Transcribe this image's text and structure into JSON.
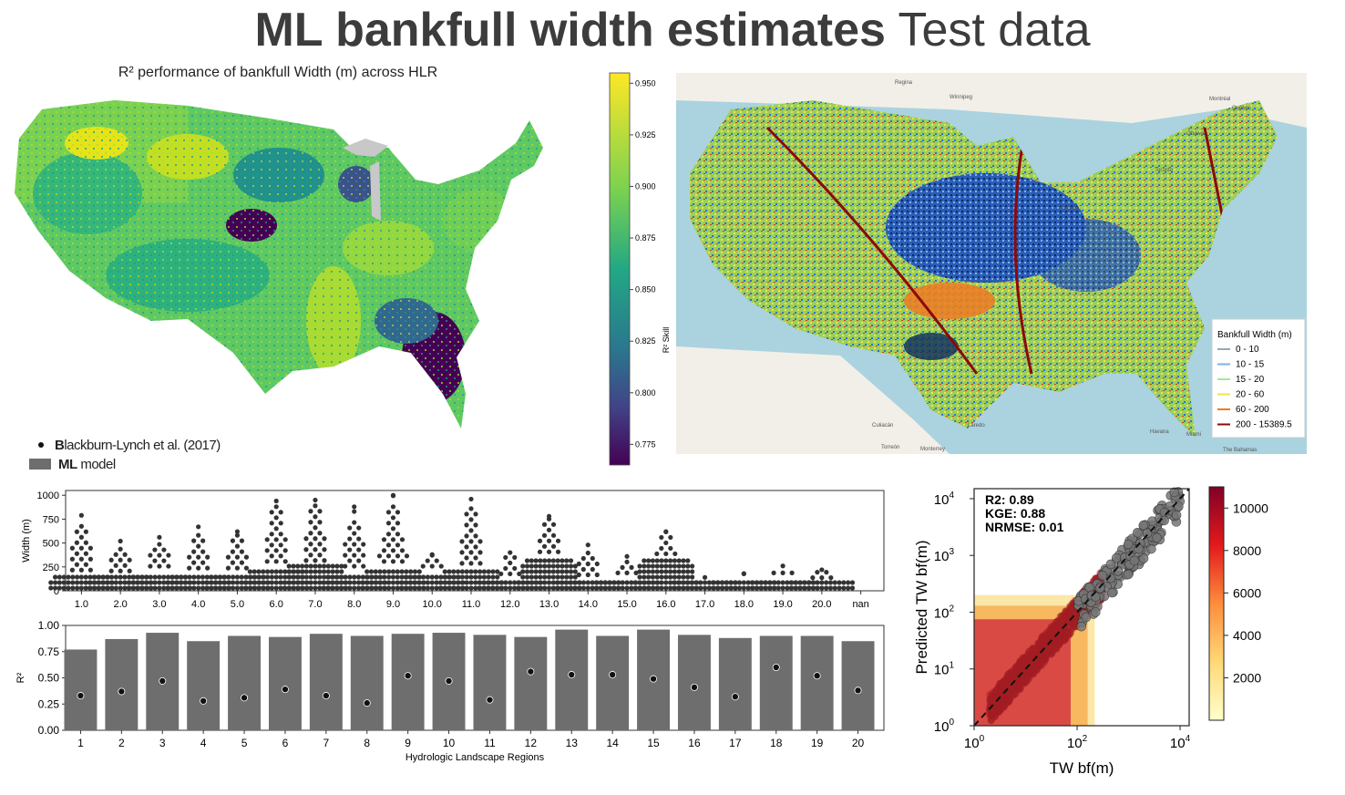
{
  "title": {
    "bold": "ML bankfull width estimates",
    "normal": "Test data"
  },
  "map_left": {
    "title": "R² performance of bankfull Width (m) across HLR",
    "colorbar": {
      "label": "R² Skill",
      "ticks": [
        "0.950",
        "0.925",
        "0.900",
        "0.875",
        "0.850",
        "0.825",
        "0.800",
        "0.775"
      ],
      "range": [
        0.765,
        0.955
      ],
      "colormap": "viridis"
    }
  },
  "map_right": {
    "place_labels": [
      "Regina",
      "Winnipeg",
      "Ottawa",
      "Toronto",
      "Montréal",
      "Québec",
      "Torreón",
      "Monterrey",
      "Culiacán",
      "Havana",
      "The Bahamas",
      "Miami",
      "Laredo",
      "Chicago"
    ],
    "legend": {
      "title": "Bankfull Width (m)",
      "items": [
        {
          "label": "0 - 10",
          "color": "#9aa6b0"
        },
        {
          "label": "10 - 15",
          "color": "#7fb0e0"
        },
        {
          "label": "15 - 20",
          "color": "#a8e6a0"
        },
        {
          "label": "20 - 60",
          "color": "#f2e34a"
        },
        {
          "label": "60 - 200",
          "color": "#f07a22"
        },
        {
          "label": "200 - 15389.5",
          "color": "#8b0a0a"
        }
      ]
    }
  },
  "legend_bottom": {
    "dot_label_bold": "B",
    "dot_label_rest": "lackburn-Lynch et al. (2017)",
    "bar_label_bold": "ML",
    "bar_label_rest": " model"
  },
  "chart_data": [
    {
      "type": "scatter",
      "name": "swarm",
      "ylabel": "Width (m)",
      "ylim": [
        0,
        1050
      ],
      "yticks": [
        "0",
        "250",
        "500",
        "750",
        "1000"
      ],
      "categories": [
        "1.0",
        "2.0",
        "3.0",
        "4.0",
        "5.0",
        "6.0",
        "7.0",
        "8.0",
        "9.0",
        "10.0",
        "11.0",
        "12.0",
        "13.0",
        "14.0",
        "15.0",
        "16.0",
        "17.0",
        "18.0",
        "19.0",
        "20.0",
        "nan"
      ],
      "max_values": [
        790,
        520,
        560,
        670,
        620,
        940,
        950,
        880,
        1000,
        380,
        960,
        400,
        780,
        480,
        360,
        620,
        140,
        180,
        260,
        220,
        0
      ],
      "bulk_top": [
        160,
        150,
        200,
        180,
        180,
        250,
        260,
        200,
        250,
        200,
        230,
        120,
        350,
        110,
        130,
        330,
        110,
        120,
        130,
        80,
        0
      ]
    },
    {
      "type": "bar",
      "name": "r2",
      "xlabel": "Hydrologic Landscape Regions",
      "ylabel": "R²",
      "ylim": [
        0,
        1.0
      ],
      "yticks": [
        "0.00",
        "0.25",
        "0.50",
        "0.75",
        "1.00"
      ],
      "categories": [
        "1",
        "2",
        "3",
        "4",
        "5",
        "6",
        "7",
        "8",
        "9",
        "10",
        "11",
        "12",
        "13",
        "14",
        "15",
        "16",
        "17",
        "18",
        "19",
        "20"
      ],
      "series": [
        {
          "name": "ML model",
          "values": [
            0.77,
            0.87,
            0.93,
            0.85,
            0.9,
            0.89,
            0.92,
            0.9,
            0.92,
            0.93,
            0.91,
            0.89,
            0.96,
            0.9,
            0.96,
            0.91,
            0.88,
            0.9,
            0.9,
            0.85
          ]
        },
        {
          "name": "Blackburn-Lynch et al. (2017)",
          "values": [
            0.33,
            0.37,
            0.47,
            0.28,
            0.31,
            0.39,
            0.33,
            0.26,
            0.52,
            0.47,
            0.29,
            0.56,
            0.53,
            0.53,
            0.49,
            0.41,
            0.32,
            0.6,
            0.52,
            0.38
          ]
        }
      ]
    },
    {
      "type": "scatter",
      "name": "predicted-vs-observed",
      "xlabel": "TW bf(m)",
      "ylabel": "Predicted TW bf(m)",
      "scale": "log",
      "xlim": [
        1,
        15000
      ],
      "ylim": [
        1,
        15000
      ],
      "xticks": [
        1,
        100,
        10000
      ],
      "yticks": [
        1,
        10,
        100,
        1000,
        10000
      ],
      "annotation": [
        "R2: 0.89",
        "KGE: 0.88",
        "NRMSE: 0.01"
      ],
      "colorbar": {
        "ticks": [
          "10000",
          "8000",
          "6000",
          "4000",
          "2000"
        ],
        "range": [
          0,
          11000
        ],
        "colormap": "YlOrRd"
      }
    }
  ]
}
